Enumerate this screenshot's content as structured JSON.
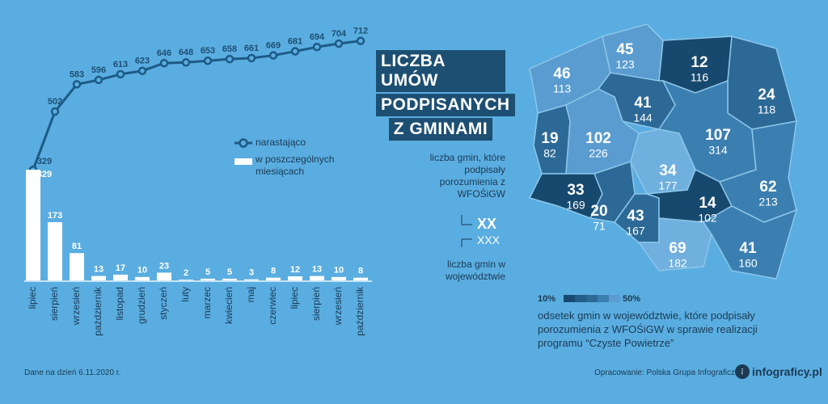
{
  "title_lines": [
    "LICZBA UMÓW",
    "PODPISANYCH",
    "Z GMINAMI"
  ],
  "chart_data": {
    "type": "combo",
    "categories": [
      "lipiec",
      "sierpień",
      "wrzesień",
      "październik",
      "listopad",
      "grudzień",
      "styczeń",
      "luty",
      "marzec",
      "kwiecień",
      "maj",
      "czerwiec",
      "lipiec",
      "sierpień",
      "wrzesień",
      "październik"
    ],
    "series": [
      {
        "name": "narastająco",
        "type": "line",
        "color": "#1d5a86",
        "values": [
          329,
          502,
          583,
          596,
          613,
          623,
          646,
          648,
          653,
          658,
          661,
          669,
          681,
          694,
          704,
          712
        ]
      },
      {
        "name": "w poszczególnych miesiącach",
        "type": "bar",
        "color": "#ffffff",
        "values": [
          329,
          173,
          81,
          13,
          17,
          10,
          23,
          2,
          5,
          5,
          3,
          8,
          12,
          13,
          10,
          8
        ]
      }
    ],
    "ylim": [
      0,
      740
    ]
  },
  "key": {
    "signed_label": "liczba gmin, które podpisały porozumienia z WFOŚiGW",
    "signed_sample": "XX",
    "total_sample": "XXX",
    "total_label": "liczba gmin w województwie"
  },
  "map": {
    "regions": [
      {
        "signed": 46,
        "total": 113,
        "color": "#5a9ccf"
      },
      {
        "signed": 45,
        "total": 123,
        "color": "#5a9ccf"
      },
      {
        "signed": 12,
        "total": 116,
        "color": "#17496f"
      },
      {
        "signed": 24,
        "total": 118,
        "color": "#2d6996"
      },
      {
        "signed": 41,
        "total": 144,
        "color": "#2d6996"
      },
      {
        "signed": 19,
        "total": 82,
        "color": "#2d6996"
      },
      {
        "signed": 102,
        "total": 226,
        "color": "#5a9ccf"
      },
      {
        "signed": 107,
        "total": 314,
        "color": "#3b7fb1"
      },
      {
        "signed": 34,
        "total": 177,
        "color": "#6fb0df"
      },
      {
        "signed": 33,
        "total": 169,
        "color": "#17496f"
      },
      {
        "signed": 20,
        "total": 71,
        "color": "#2d6996"
      },
      {
        "signed": 43,
        "total": 167,
        "color": "#2d6996"
      },
      {
        "signed": 14,
        "total": 102,
        "color": "#17496f"
      },
      {
        "signed": 62,
        "total": 213,
        "color": "#3b7fb1"
      },
      {
        "signed": 69,
        "total": 182,
        "color": "#6fb0df"
      },
      {
        "signed": 41,
        "total": 160,
        "color": "#3b7fb1"
      }
    ],
    "legend": {
      "min_label": "10%",
      "max_label": "50%",
      "colors": [
        "#17496f",
        "#245d88",
        "#2d6996",
        "#3b7fb1",
        "#5a9ccf"
      ],
      "text": "odsetek gmin w województwie, które podpisały porozumienia z WFOŚiGW w sprawie realizacji programu “Czyste Powietrze”"
    }
  },
  "footer": {
    "date": "Dane na dzień 6.11.2020 r.",
    "source": "Opracowanie: Polska Grupa Infograficzna",
    "brand": "infograficy.pl"
  }
}
